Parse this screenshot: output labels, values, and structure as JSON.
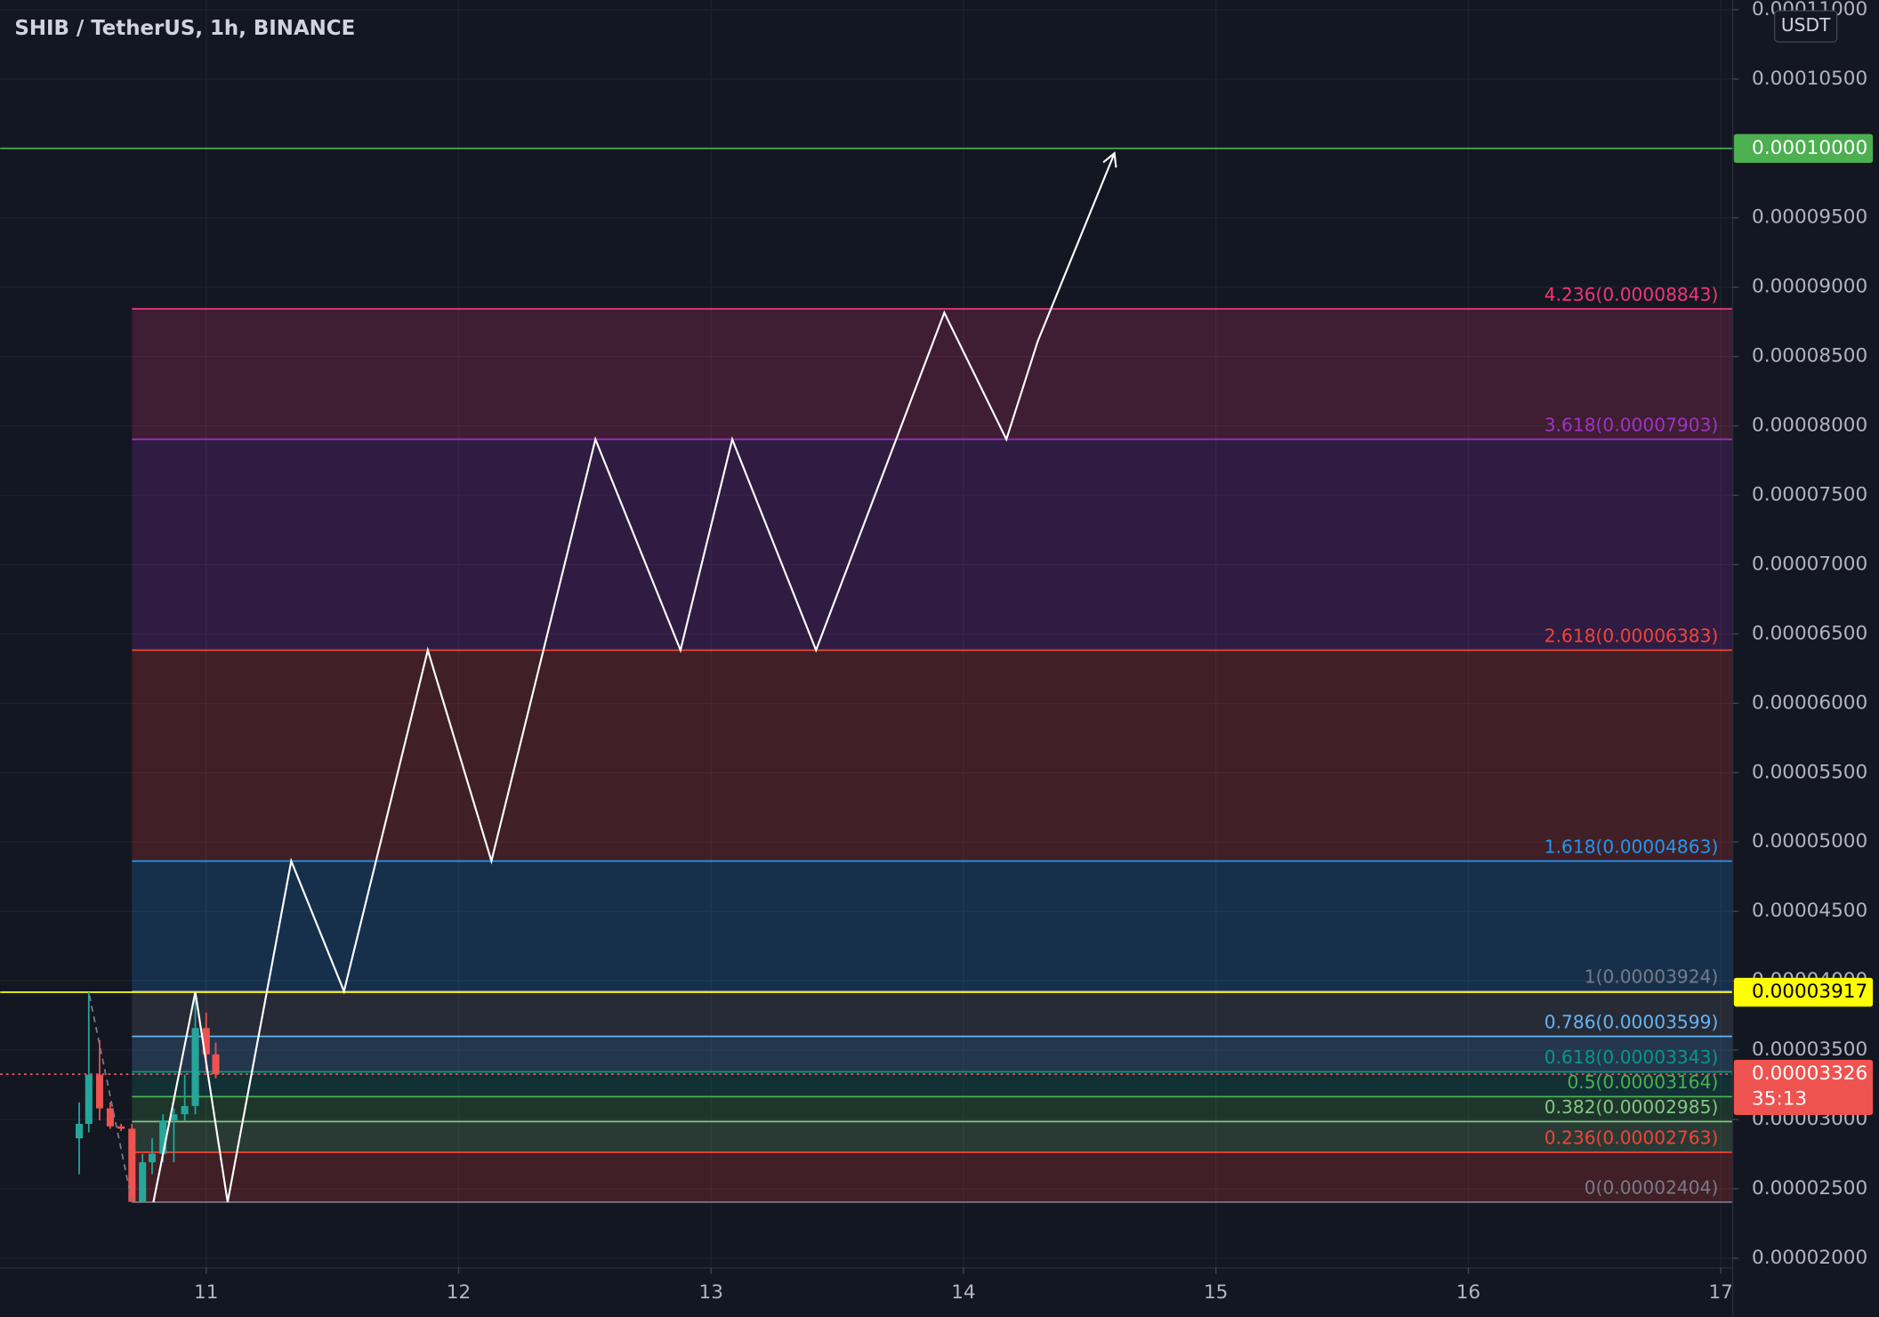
{
  "chart_data": {
    "type": "candlestick",
    "title": "SHIB / TetherUS, 1h, BINANCE",
    "currency": "USDT",
    "xlim": [
      10.184,
      17.047
    ],
    "xticks": [
      11,
      12,
      13,
      14,
      15,
      16,
      17
    ],
    "ylim": [
      1.93e-05,
      0.0001107
    ],
    "yticks": [
      {
        "value": 2e-05,
        "label": "0.00002000"
      },
      {
        "value": 2.5e-05,
        "label": "0.00002500"
      },
      {
        "value": 3e-05,
        "label": "0.00003000"
      },
      {
        "value": 3.5e-05,
        "label": "0.00003500"
      },
      {
        "value": 4e-05,
        "label": "0.00004000"
      },
      {
        "value": 4.5e-05,
        "label": "0.00004500"
      },
      {
        "value": 5e-05,
        "label": "0.00005000"
      },
      {
        "value": 5.5e-05,
        "label": "0.00005500"
      },
      {
        "value": 6e-05,
        "label": "0.00006000"
      },
      {
        "value": 6.5e-05,
        "label": "0.00006500"
      },
      {
        "value": 7e-05,
        "label": "0.00007000"
      },
      {
        "value": 7.5e-05,
        "label": "0.00007500"
      },
      {
        "value": 8e-05,
        "label": "0.00008000"
      },
      {
        "value": 8.5e-05,
        "label": "0.00008500"
      },
      {
        "value": 9e-05,
        "label": "0.00009000"
      },
      {
        "value": 9.5e-05,
        "label": "0.00009500"
      },
      {
        "value": 0.0001,
        "label": "0.00010000"
      },
      {
        "value": 0.000105,
        "label": "0.00010500"
      },
      {
        "value": 0.00011,
        "label": "0.00011000"
      }
    ],
    "grid": true,
    "up_color": "#26a69a",
    "down_color": "#ef5350",
    "candles": {
      "x": [
        10.497,
        10.535,
        10.578,
        10.62,
        10.663,
        10.706,
        10.748,
        10.786,
        10.829,
        10.872,
        10.915,
        10.957,
        11.0,
        11.038
      ],
      "open": [
        2.864e-05,
        2.968e-05,
        3.322e-05,
        3.08e-05,
        2.95e-05,
        2.933e-05,
        2.406e-05,
        2.691e-05,
        2.752e-05,
        2.993e-05,
        3.037e-05,
        3.097e-05,
        3.659e-05,
        3.469e-05
      ],
      "high": [
        3.123e-05,
        3.918e-05,
        3.572e-05,
        3.123e-05,
        2.968e-05,
        2.968e-05,
        2.752e-05,
        2.864e-05,
        3.037e-05,
        3.08e-05,
        3.322e-05,
        3.918e-05,
        3.771e-05,
        3.555e-05
      ],
      "low": [
        2.605e-05,
        2.907e-05,
        2.993e-05,
        2.933e-05,
        2.916e-05,
        2.406e-05,
        2.406e-05,
        2.606e-05,
        2.691e-05,
        2.691e-05,
        2.993e-05,
        3.037e-05,
        3.339e-05,
        3.296e-05
      ],
      "close": [
        2.968e-05,
        3.322e-05,
        3.08e-05,
        2.95e-05,
        2.933e-05,
        2.406e-05,
        2.691e-05,
        2.752e-05,
        2.993e-05,
        3.037e-05,
        3.097e-05,
        3.659e-05,
        3.469e-05,
        3.326e-05
      ]
    },
    "fib": {
      "x_start": 10.706,
      "levels": [
        {
          "value": 8.843e-05,
          "label": "4.236(0.00008843)",
          "color": "#f23674"
        },
        {
          "value": 7.903e-05,
          "label": "3.618(0.00007903)",
          "color": "#a033c4"
        },
        {
          "value": 6.383e-05,
          "label": "2.618(0.00006383)",
          "color": "#f44336"
        },
        {
          "value": 4.863e-05,
          "label": "1.618(0.00004863)",
          "color": "#2196f3"
        },
        {
          "value": 3.924e-05,
          "label": "1(0.00003924)",
          "color": "#787b86"
        },
        {
          "value": 3.599e-05,
          "label": "0.786(0.00003599)",
          "color": "#64b5f6"
        },
        {
          "value": 3.343e-05,
          "label": "0.618(0.00003343)",
          "color": "#089981"
        },
        {
          "value": 3.164e-05,
          "label": "0.5(0.00003164)",
          "color": "#4caf50"
        },
        {
          "value": 2.985e-05,
          "label": "0.382(0.00002985)",
          "color": "#81c784"
        },
        {
          "value": 2.763e-05,
          "label": "0.236(0.00002763)",
          "color": "#f44336"
        },
        {
          "value": 2.404e-05,
          "label": "0(0.00002404)",
          "color": "#787b86"
        }
      ]
    },
    "projection": {
      "color": "#ffffff",
      "x": [
        10.791,
        10.957,
        11.085,
        11.337,
        11.546,
        11.878,
        12.13,
        12.542,
        12.879,
        13.084,
        13.416,
        13.924,
        14.17,
        14.294,
        14.598
      ],
      "values": [
        2.404e-05,
        3.918e-05,
        2.404e-05,
        4.863e-05,
        3.924e-05,
        6.383e-05,
        4.863e-05,
        7.903e-05,
        6.383e-05,
        7.903e-05,
        6.383e-05,
        8.816e-05,
        7.903e-05,
        8.609e-05,
        9.965e-05
      ]
    },
    "price_tags": [
      {
        "value": 0.0001,
        "label": "0.00010000",
        "color": "#4caf50",
        "text_color": "#ffffff",
        "line": "solid"
      },
      {
        "value": 3.917e-05,
        "label": "0.00003917",
        "color": "#ffff00",
        "text_color": "#000000",
        "line": "solid"
      },
      {
        "value": 3.326e-05,
        "label": "0.00003326",
        "color": "#ef5350",
        "text_color": "#ffffff",
        "line": "dotted"
      }
    ],
    "countdown": "35:13"
  }
}
